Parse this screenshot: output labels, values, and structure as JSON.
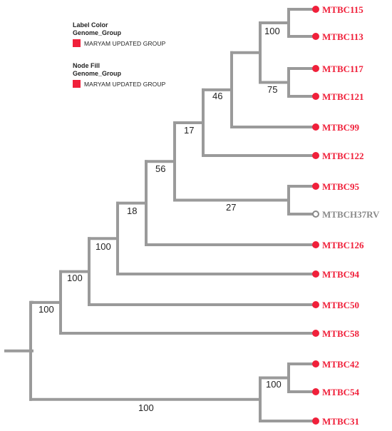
{
  "legend": {
    "label_color": {
      "title": "Label Color",
      "subtitle": "Genome_Group",
      "item": "MARYAM UPDATED GROUP",
      "color": "#f0203a"
    },
    "node_fill": {
      "title": "Node Fill",
      "subtitle": "Genome_Group",
      "item": "MARYAM UPDATED GROUP",
      "color": "#f0203a"
    }
  },
  "colors": {
    "group": "#f0203a",
    "reference": "#8a8a8a",
    "branch": "#9a9a9a"
  },
  "leaves": [
    {
      "name": "MTBC115",
      "group": true
    },
    {
      "name": "MTBC113",
      "group": true
    },
    {
      "name": "MTBC117",
      "group": true
    },
    {
      "name": "MTBC121",
      "group": true
    },
    {
      "name": "MTBC99",
      "group": true
    },
    {
      "name": "MTBC122",
      "group": true
    },
    {
      "name": "MTBC95",
      "group": true
    },
    {
      "name": "MTBCH37RV",
      "group": false
    },
    {
      "name": "MTBC126",
      "group": true
    },
    {
      "name": "MTBC94",
      "group": true
    },
    {
      "name": "MTBC50",
      "group": true
    },
    {
      "name": "MTBC58",
      "group": true
    },
    {
      "name": "MTBC42",
      "group": true
    },
    {
      "name": "MTBC54",
      "group": true
    },
    {
      "name": "MTBC31",
      "group": true
    }
  ],
  "support_values": [
    {
      "node": "clade-115-113",
      "value": "100"
    },
    {
      "node": "clade-117-121",
      "value": "75"
    },
    {
      "node": "clade-46",
      "value": "46"
    },
    {
      "node": "clade-17",
      "value": "17"
    },
    {
      "node": "clade-56",
      "value": "56"
    },
    {
      "node": "clade-95-h37rv",
      "value": "27"
    },
    {
      "node": "clade-18",
      "value": "18"
    },
    {
      "node": "clade-100-a",
      "value": "100"
    },
    {
      "node": "clade-100-b",
      "value": "100"
    },
    {
      "node": "clade-100-c",
      "value": "100"
    },
    {
      "node": "clade-42-54",
      "value": "100"
    },
    {
      "node": "clade-42-54-31",
      "value": "100"
    }
  ]
}
